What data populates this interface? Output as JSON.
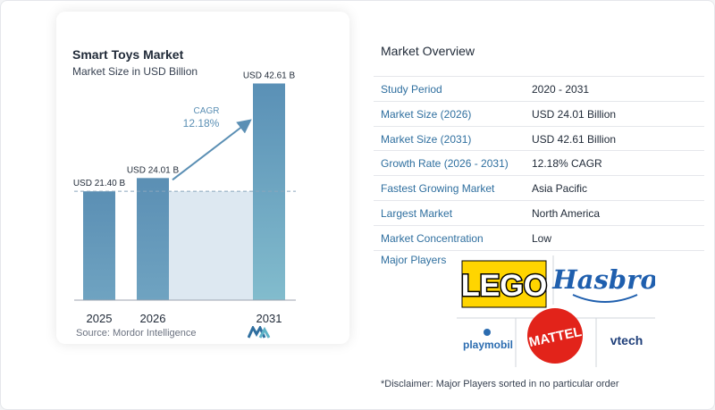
{
  "chart_data": {
    "type": "bar",
    "title": "Smart Toys Market",
    "subtitle": "Market Size in USD Billion",
    "categories": [
      "2025",
      "2026",
      "2031"
    ],
    "values": [
      21.4,
      24.01,
      42.61
    ],
    "value_labels": [
      "USD 21.40 B",
      "USD 24.01 B",
      "USD 42.61 B"
    ],
    "cagr_label": "CAGR",
    "cagr_value": "12.18%",
    "bar_color": "#5b8fb4",
    "highlight_bar_color": "#7fb3c9",
    "ylim": [
      0,
      45
    ],
    "source": "Source:  Mordor Intelligence"
  },
  "overview": {
    "title": "Market Overview",
    "rows": [
      {
        "label": "Study Period",
        "value": "2020 - 2031"
      },
      {
        "label": "Market Size (2026)",
        "value": "USD 24.01 Billion"
      },
      {
        "label": "Market Size (2031)",
        "value": "USD 42.61 Billion"
      },
      {
        "label": "Growth Rate (2026 - 2031)",
        "value": "12.18% CAGR"
      },
      {
        "label": "Fastest Growing Market",
        "value": "Asia Pacific"
      },
      {
        "label": "Largest Market",
        "value": "North America"
      },
      {
        "label": "Market Concentration",
        "value": "Low"
      }
    ],
    "players_label": "Major Players",
    "players": [
      "LEGO",
      "Hasbro",
      "MATTEL",
      "playmobil",
      "vtech"
    ],
    "disclaimer": "*Disclaimer: Major Players sorted in no particular order"
  },
  "colors": {
    "accent": "#2f6f9f",
    "lego_red": "#e3000b",
    "lego_yellow": "#ffd500",
    "hasbro_blue": "#1f5fae",
    "mattel_red": "#e2231a",
    "playmobil_blue": "#2b6cb0",
    "vtech_blue": "#1f3f7a"
  }
}
